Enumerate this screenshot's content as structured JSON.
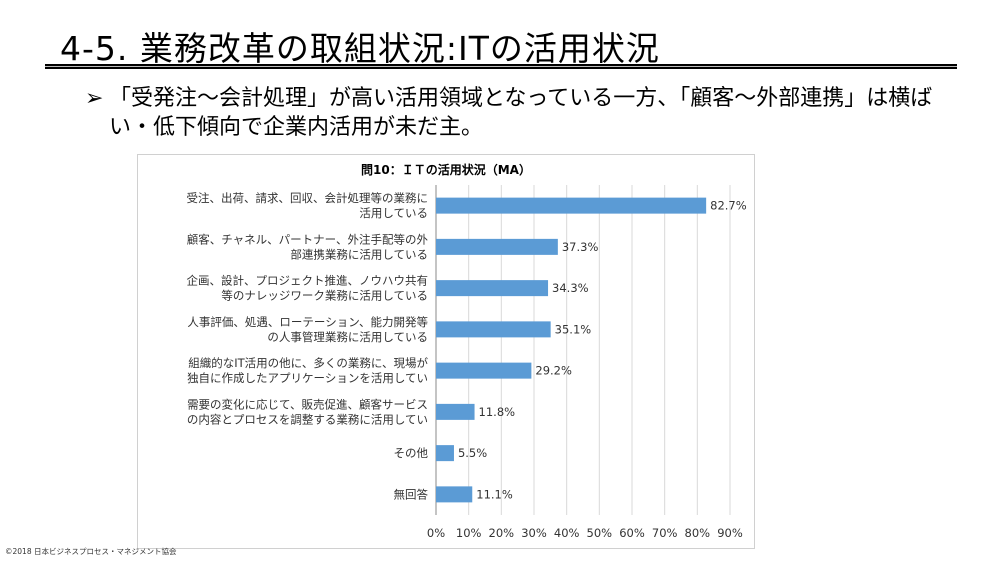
{
  "slide": {
    "title": "4-5. 業務改革の取組状況:ITの活用状況",
    "bullet_mark": "➢",
    "bullet_text": "「受発注～会計処理」が高い活用領域となっている一方、「顧客～外部連携」は横ばい・低下傾向で企業内活用が未だ主。",
    "footer": "©2018 日本ビジネスプロセス・マネジメント協会"
  },
  "colors": {
    "bar": "#5b9bd5",
    "grid": "#d9d9d9",
    "axis": "#888888"
  },
  "chart_data": {
    "type": "bar",
    "orientation": "horizontal",
    "title": "問10：ＩＴの活用状況（MA）",
    "categories": [
      [
        "受注、出荷、請求、回収、会計処理等の業務に",
        "活用している"
      ],
      [
        "顧客、チャネル、パートナー、外注手配等の外",
        "部連携業務に活用している"
      ],
      [
        "企画、設計、プロジェクト推進、ノウハウ共有",
        "等のナレッジワーク業務に活用している"
      ],
      [
        "人事評価、処遇、ローテーション、能力開発等",
        "の人事管理業務に活用している"
      ],
      [
        "組織的なIT活用の他に、多くの業務に、現場が",
        "独自に作成したアプリケーションを活用してい"
      ],
      [
        "需要の変化に応じて、販売促進、顧客サービス",
        "の内容とプロセスを調整する業務に活用してい"
      ],
      [
        "その他"
      ],
      [
        "無回答"
      ]
    ],
    "values": [
      82.7,
      37.3,
      34.3,
      35.1,
      29.2,
      11.8,
      5.5,
      11.1
    ],
    "data_labels": [
      "82.7%",
      "37.3%",
      "34.3%",
      "35.1%",
      "29.2%",
      "11.8%",
      "5.5%",
      "11.1%"
    ],
    "xlim": [
      0,
      90
    ],
    "xticks": [
      "0%",
      "10%",
      "20%",
      "30%",
      "40%",
      "50%",
      "60%",
      "70%",
      "80%",
      "90%"
    ],
    "grid": true
  }
}
